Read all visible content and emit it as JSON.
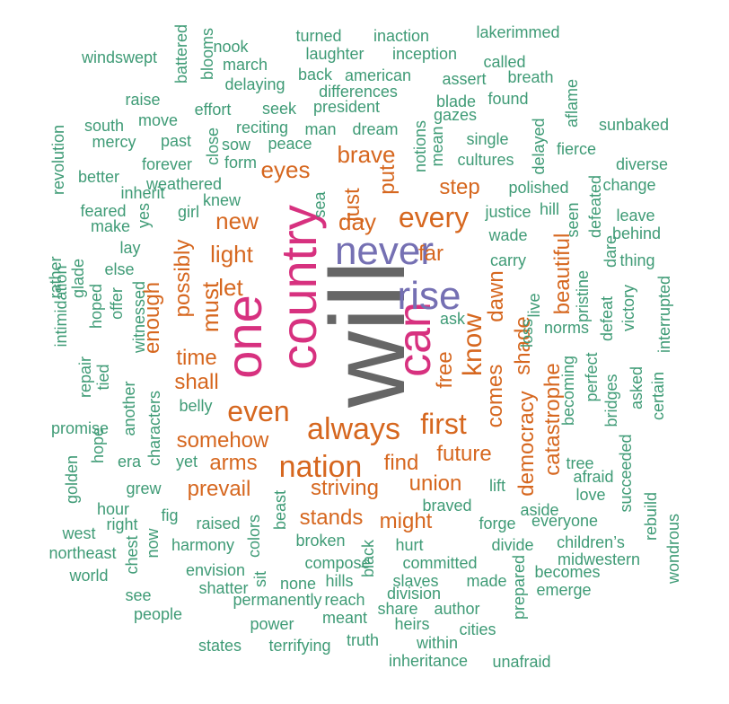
{
  "colors": {
    "xl": "#666666",
    "pink": "#d7317f",
    "purple": "#7570b3",
    "orange": "#d6671f",
    "green": "#3f9b76"
  },
  "words": [
    {
      "t": "will",
      "s": 118,
      "c": "xl",
      "r": 1
    },
    {
      "t": "country",
      "s": 56,
      "c": "pink",
      "r": 1
    },
    {
      "t": "one",
      "s": 56,
      "c": "pink",
      "r": 1
    },
    {
      "t": "can",
      "s": 52,
      "c": "pink",
      "r": 1
    },
    {
      "t": "never",
      "s": 44,
      "c": "purple",
      "r": 0
    },
    {
      "t": "rise",
      "s": 44,
      "c": "purple",
      "r": 0
    },
    {
      "t": "nation",
      "s": 34,
      "c": "orange",
      "r": 0
    },
    {
      "t": "always",
      "s": 34,
      "c": "orange",
      "r": 0
    },
    {
      "t": "every",
      "s": 32,
      "c": "orange",
      "r": 0
    },
    {
      "t": "first",
      "s": 32,
      "c": "orange",
      "r": 0
    },
    {
      "t": "even",
      "s": 32,
      "c": "orange",
      "r": 0
    },
    {
      "t": "know",
      "s": 30,
      "c": "orange",
      "r": 1
    },
    {
      "t": "light",
      "s": 26,
      "c": "orange",
      "r": 0
    },
    {
      "t": "eyes",
      "s": 26,
      "c": "orange",
      "r": 0
    },
    {
      "t": "brave",
      "s": 26,
      "c": "orange",
      "r": 0
    },
    {
      "t": "day",
      "s": 26,
      "c": "orange",
      "r": 0
    },
    {
      "t": "new",
      "s": 26,
      "c": "orange",
      "r": 0
    },
    {
      "t": "must",
      "s": 26,
      "c": "orange",
      "r": 1
    },
    {
      "t": "let",
      "s": 26,
      "c": "orange",
      "r": 0
    },
    {
      "t": "shall",
      "s": 24,
      "c": "orange",
      "r": 0
    },
    {
      "t": "time",
      "s": 24,
      "c": "orange",
      "r": 0
    },
    {
      "t": "possibly",
      "s": 24,
      "c": "orange",
      "r": 1
    },
    {
      "t": "enough",
      "s": 24,
      "c": "orange",
      "r": 1
    },
    {
      "t": "beautiful",
      "s": 24,
      "c": "orange",
      "r": 1
    },
    {
      "t": "dawn",
      "s": 24,
      "c": "orange",
      "r": 1
    },
    {
      "t": "shade",
      "s": 24,
      "c": "orange",
      "r": 1
    },
    {
      "t": "free",
      "s": 24,
      "c": "orange",
      "r": 1
    },
    {
      "t": "far",
      "s": 24,
      "c": "orange",
      "r": 0
    },
    {
      "t": "put",
      "s": 24,
      "c": "orange",
      "r": 1
    },
    {
      "t": "just",
      "s": 24,
      "c": "orange",
      "r": 1
    },
    {
      "t": "step",
      "s": 24,
      "c": "orange",
      "r": 0
    },
    {
      "t": "somehow",
      "s": 24,
      "c": "orange",
      "r": 0
    },
    {
      "t": "arms",
      "s": 24,
      "c": "orange",
      "r": 0
    },
    {
      "t": "prevail",
      "s": 24,
      "c": "orange",
      "r": 0
    },
    {
      "t": "striving",
      "s": 24,
      "c": "orange",
      "r": 0
    },
    {
      "t": "stands",
      "s": 24,
      "c": "orange",
      "r": 0
    },
    {
      "t": "might",
      "s": 24,
      "c": "orange",
      "r": 0
    },
    {
      "t": "find",
      "s": 24,
      "c": "orange",
      "r": 0
    },
    {
      "t": "union",
      "s": 24,
      "c": "orange",
      "r": 0
    },
    {
      "t": "future",
      "s": 24,
      "c": "orange",
      "r": 0
    },
    {
      "t": "comes",
      "s": 24,
      "c": "orange",
      "r": 1
    },
    {
      "t": "democracy",
      "s": 24,
      "c": "orange",
      "r": 1
    },
    {
      "t": "catastrophe",
      "s": 24,
      "c": "orange",
      "r": 1
    },
    {
      "t": "windswept",
      "s": 18,
      "c": "green",
      "r": 0
    },
    {
      "t": "battered",
      "s": 18,
      "c": "green",
      "r": 1
    },
    {
      "t": "blooms",
      "s": 18,
      "c": "green",
      "r": 1
    },
    {
      "t": "nook",
      "s": 18,
      "c": "green",
      "r": 0
    },
    {
      "t": "march",
      "s": 18,
      "c": "green",
      "r": 0
    },
    {
      "t": "turned",
      "s": 18,
      "c": "green",
      "r": 0
    },
    {
      "t": "laughter",
      "s": 18,
      "c": "green",
      "r": 0
    },
    {
      "t": "inaction",
      "s": 18,
      "c": "green",
      "r": 0
    },
    {
      "t": "inception",
      "s": 18,
      "c": "green",
      "r": 0
    },
    {
      "t": "lakerimmed",
      "s": 18,
      "c": "green",
      "r": 0
    },
    {
      "t": "called",
      "s": 18,
      "c": "green",
      "r": 0
    },
    {
      "t": "back",
      "s": 18,
      "c": "green",
      "r": 0
    },
    {
      "t": "american",
      "s": 18,
      "c": "green",
      "r": 0
    },
    {
      "t": "assert",
      "s": 18,
      "c": "green",
      "r": 0
    },
    {
      "t": "breath",
      "s": 18,
      "c": "green",
      "r": 0
    },
    {
      "t": "delaying",
      "s": 18,
      "c": "green",
      "r": 0
    },
    {
      "t": "differences",
      "s": 18,
      "c": "green",
      "r": 0
    },
    {
      "t": "raise",
      "s": 18,
      "c": "green",
      "r": 0
    },
    {
      "t": "effort",
      "s": 18,
      "c": "green",
      "r": 0
    },
    {
      "t": "seek",
      "s": 18,
      "c": "green",
      "r": 0
    },
    {
      "t": "president",
      "s": 18,
      "c": "green",
      "r": 0
    },
    {
      "t": "blade",
      "s": 18,
      "c": "green",
      "r": 0
    },
    {
      "t": "found",
      "s": 18,
      "c": "green",
      "r": 0
    },
    {
      "t": "aflame",
      "s": 18,
      "c": "green",
      "r": 1
    },
    {
      "t": "south",
      "s": 18,
      "c": "green",
      "r": 0
    },
    {
      "t": "move",
      "s": 18,
      "c": "green",
      "r": 0
    },
    {
      "t": "reciting",
      "s": 18,
      "c": "green",
      "r": 0
    },
    {
      "t": "man",
      "s": 18,
      "c": "green",
      "r": 0
    },
    {
      "t": "dream",
      "s": 18,
      "c": "green",
      "r": 0
    },
    {
      "t": "gazes",
      "s": 18,
      "c": "green",
      "r": 0
    },
    {
      "t": "revolution",
      "s": 18,
      "c": "green",
      "r": 1
    },
    {
      "t": "mercy",
      "s": 18,
      "c": "green",
      "r": 0
    },
    {
      "t": "past",
      "s": 18,
      "c": "green",
      "r": 0
    },
    {
      "t": "close",
      "s": 18,
      "c": "green",
      "r": 1
    },
    {
      "t": "sow",
      "s": 18,
      "c": "green",
      "r": 0
    },
    {
      "t": "peace",
      "s": 18,
      "c": "green",
      "r": 0
    },
    {
      "t": "notions",
      "s": 18,
      "c": "green",
      "r": 1
    },
    {
      "t": "mean",
      "s": 18,
      "c": "green",
      "r": 1
    },
    {
      "t": "single",
      "s": 18,
      "c": "green",
      "r": 0
    },
    {
      "t": "delayed",
      "s": 18,
      "c": "green",
      "r": 1
    },
    {
      "t": "sunbaked",
      "s": 18,
      "c": "green",
      "r": 0
    },
    {
      "t": "fierce",
      "s": 18,
      "c": "green",
      "r": 0
    },
    {
      "t": "better",
      "s": 18,
      "c": "green",
      "r": 0
    },
    {
      "t": "forever",
      "s": 18,
      "c": "green",
      "r": 0
    },
    {
      "t": "form",
      "s": 18,
      "c": "green",
      "r": 0
    },
    {
      "t": "cultures",
      "s": 18,
      "c": "green",
      "r": 0
    },
    {
      "t": "diverse",
      "s": 18,
      "c": "green",
      "r": 0
    },
    {
      "t": "inherit",
      "s": 18,
      "c": "green",
      "r": 0
    },
    {
      "t": "weathered",
      "s": 18,
      "c": "green",
      "r": 0
    },
    {
      "t": "sea",
      "s": 18,
      "c": "green",
      "r": 1
    },
    {
      "t": "polished",
      "s": 18,
      "c": "green",
      "r": 0
    },
    {
      "t": "change",
      "s": 18,
      "c": "green",
      "r": 0
    },
    {
      "t": "feared",
      "s": 18,
      "c": "green",
      "r": 0
    },
    {
      "t": "yes",
      "s": 18,
      "c": "green",
      "r": 1
    },
    {
      "t": "knew",
      "s": 18,
      "c": "green",
      "r": 0
    },
    {
      "t": "defeated",
      "s": 18,
      "c": "green",
      "r": 1
    },
    {
      "t": "seen",
      "s": 18,
      "c": "green",
      "r": 1
    },
    {
      "t": "hill",
      "s": 18,
      "c": "green",
      "r": 0
    },
    {
      "t": "leave",
      "s": 18,
      "c": "green",
      "r": 0
    },
    {
      "t": "make",
      "s": 18,
      "c": "green",
      "r": 0
    },
    {
      "t": "girl",
      "s": 18,
      "c": "green",
      "r": 0
    },
    {
      "t": "justice",
      "s": 18,
      "c": "green",
      "r": 0
    },
    {
      "t": "behind",
      "s": 18,
      "c": "green",
      "r": 0
    },
    {
      "t": "lay",
      "s": 18,
      "c": "green",
      "r": 0
    },
    {
      "t": "wade",
      "s": 18,
      "c": "green",
      "r": 0
    },
    {
      "t": "dare",
      "s": 18,
      "c": "green",
      "r": 1
    },
    {
      "t": "glade",
      "s": 18,
      "c": "green",
      "r": 1
    },
    {
      "t": "else",
      "s": 18,
      "c": "green",
      "r": 0
    },
    {
      "t": "carry",
      "s": 18,
      "c": "green",
      "r": 0
    },
    {
      "t": "thing",
      "s": 18,
      "c": "green",
      "r": 0
    },
    {
      "t": "rather",
      "s": 18,
      "c": "green",
      "r": 1
    },
    {
      "t": "intimidation",
      "s": 18,
      "c": "green",
      "r": 1
    },
    {
      "t": "offer",
      "s": 18,
      "c": "green",
      "r": 1
    },
    {
      "t": "witnessed",
      "s": 18,
      "c": "green",
      "r": 1
    },
    {
      "t": "hoped",
      "s": 18,
      "c": "green",
      "r": 1
    },
    {
      "t": "live",
      "s": 18,
      "c": "green",
      "r": 1
    },
    {
      "t": "pristine",
      "s": 18,
      "c": "green",
      "r": 1
    },
    {
      "t": "victory",
      "s": 18,
      "c": "green",
      "r": 1
    },
    {
      "t": "interrupted",
      "s": 18,
      "c": "green",
      "r": 1
    },
    {
      "t": "defeat",
      "s": 18,
      "c": "green",
      "r": 1
    },
    {
      "t": "ask",
      "s": 18,
      "c": "green",
      "r": 0
    },
    {
      "t": "loss",
      "s": 18,
      "c": "green",
      "r": 1
    },
    {
      "t": "norms",
      "s": 18,
      "c": "green",
      "r": 0
    },
    {
      "t": "repair",
      "s": 18,
      "c": "green",
      "r": 1
    },
    {
      "t": "tied",
      "s": 18,
      "c": "green",
      "r": 1
    },
    {
      "t": "another",
      "s": 18,
      "c": "green",
      "r": 1
    },
    {
      "t": "perfect",
      "s": 18,
      "c": "green",
      "r": 1
    },
    {
      "t": "becoming",
      "s": 18,
      "c": "green",
      "r": 1
    },
    {
      "t": "asked",
      "s": 18,
      "c": "green",
      "r": 1
    },
    {
      "t": "certain",
      "s": 18,
      "c": "green",
      "r": 1
    },
    {
      "t": "bridges",
      "s": 18,
      "c": "green",
      "r": 1
    },
    {
      "t": "belly",
      "s": 18,
      "c": "green",
      "r": 0
    },
    {
      "t": "promise",
      "s": 18,
      "c": "green",
      "r": 0
    },
    {
      "t": "characters",
      "s": 18,
      "c": "green",
      "r": 1
    },
    {
      "t": "golden",
      "s": 18,
      "c": "green",
      "r": 1
    },
    {
      "t": "hope",
      "s": 18,
      "c": "green",
      "r": 1
    },
    {
      "t": "era",
      "s": 18,
      "c": "green",
      "r": 0
    },
    {
      "t": "yet",
      "s": 18,
      "c": "green",
      "r": 0
    },
    {
      "t": "tree",
      "s": 18,
      "c": "green",
      "r": 0
    },
    {
      "t": "afraid",
      "s": 18,
      "c": "green",
      "r": 0
    },
    {
      "t": "succeeded",
      "s": 18,
      "c": "green",
      "r": 1
    },
    {
      "t": "lift",
      "s": 18,
      "c": "green",
      "r": 0
    },
    {
      "t": "love",
      "s": 18,
      "c": "green",
      "r": 0
    },
    {
      "t": "grew",
      "s": 18,
      "c": "green",
      "r": 0
    },
    {
      "t": "braved",
      "s": 18,
      "c": "green",
      "r": 0
    },
    {
      "t": "rebuild",
      "s": 18,
      "c": "green",
      "r": 1
    },
    {
      "t": "hour",
      "s": 18,
      "c": "green",
      "r": 0
    },
    {
      "t": "beast",
      "s": 18,
      "c": "green",
      "r": 1
    },
    {
      "t": "aside",
      "s": 18,
      "c": "green",
      "r": 0
    },
    {
      "t": "wondrous",
      "s": 18,
      "c": "green",
      "r": 1
    },
    {
      "t": "fig",
      "s": 18,
      "c": "green",
      "r": 0
    },
    {
      "t": "west",
      "s": 18,
      "c": "green",
      "r": 0
    },
    {
      "t": "right",
      "s": 18,
      "c": "green",
      "r": 0
    },
    {
      "t": "raised",
      "s": 18,
      "c": "green",
      "r": 0
    },
    {
      "t": "forge",
      "s": 18,
      "c": "green",
      "r": 0
    },
    {
      "t": "everyone",
      "s": 18,
      "c": "green",
      "r": 0
    },
    {
      "t": "now",
      "s": 18,
      "c": "green",
      "r": 1
    },
    {
      "t": "colors",
      "s": 18,
      "c": "green",
      "r": 1
    },
    {
      "t": "broken",
      "s": 18,
      "c": "green",
      "r": 0
    },
    {
      "t": "hurt",
      "s": 18,
      "c": "green",
      "r": 0
    },
    {
      "t": "divide",
      "s": 18,
      "c": "green",
      "r": 0
    },
    {
      "t": "children’s",
      "s": 18,
      "c": "green",
      "r": 0
    },
    {
      "t": "northeast",
      "s": 18,
      "c": "green",
      "r": 0
    },
    {
      "t": "harmony",
      "s": 18,
      "c": "green",
      "r": 0
    },
    {
      "t": "chest",
      "s": 18,
      "c": "green",
      "r": 1
    },
    {
      "t": "compose",
      "s": 18,
      "c": "green",
      "r": 0
    },
    {
      "t": "black",
      "s": 18,
      "c": "green",
      "r": 1
    },
    {
      "t": "committed",
      "s": 18,
      "c": "green",
      "r": 0
    },
    {
      "t": "midwestern",
      "s": 18,
      "c": "green",
      "r": 0
    },
    {
      "t": "world",
      "s": 18,
      "c": "green",
      "r": 0
    },
    {
      "t": "envision",
      "s": 18,
      "c": "green",
      "r": 0
    },
    {
      "t": "sit",
      "s": 18,
      "c": "green",
      "r": 1
    },
    {
      "t": "none",
      "s": 18,
      "c": "green",
      "r": 0
    },
    {
      "t": "hills",
      "s": 18,
      "c": "green",
      "r": 0
    },
    {
      "t": "slaves",
      "s": 18,
      "c": "green",
      "r": 0
    },
    {
      "t": "made",
      "s": 18,
      "c": "green",
      "r": 0
    },
    {
      "t": "prepared",
      "s": 18,
      "c": "green",
      "r": 1
    },
    {
      "t": "becomes",
      "s": 18,
      "c": "green",
      "r": 0
    },
    {
      "t": "shatter",
      "s": 18,
      "c": "green",
      "r": 0
    },
    {
      "t": "division",
      "s": 18,
      "c": "green",
      "r": 0
    },
    {
      "t": "emerge",
      "s": 18,
      "c": "green",
      "r": 0
    },
    {
      "t": "see",
      "s": 18,
      "c": "green",
      "r": 0
    },
    {
      "t": "permanently",
      "s": 18,
      "c": "green",
      "r": 0
    },
    {
      "t": "reach",
      "s": 18,
      "c": "green",
      "r": 0
    },
    {
      "t": "share",
      "s": 18,
      "c": "green",
      "r": 0
    },
    {
      "t": "author",
      "s": 18,
      "c": "green",
      "r": 0
    },
    {
      "t": "people",
      "s": 18,
      "c": "green",
      "r": 0
    },
    {
      "t": "meant",
      "s": 18,
      "c": "green",
      "r": 0
    },
    {
      "t": "power",
      "s": 18,
      "c": "green",
      "r": 0
    },
    {
      "t": "heirs",
      "s": 18,
      "c": "green",
      "r": 0
    },
    {
      "t": "cities",
      "s": 18,
      "c": "green",
      "r": 0
    },
    {
      "t": "states",
      "s": 18,
      "c": "green",
      "r": 0
    },
    {
      "t": "terrifying",
      "s": 18,
      "c": "green",
      "r": 0
    },
    {
      "t": "truth",
      "s": 18,
      "c": "green",
      "r": 0
    },
    {
      "t": "within",
      "s": 18,
      "c": "green",
      "r": 0
    },
    {
      "t": "inheritance",
      "s": 18,
      "c": "green",
      "r": 0
    },
    {
      "t": "unafraid",
      "s": 18,
      "c": "green",
      "r": 0
    }
  ]
}
